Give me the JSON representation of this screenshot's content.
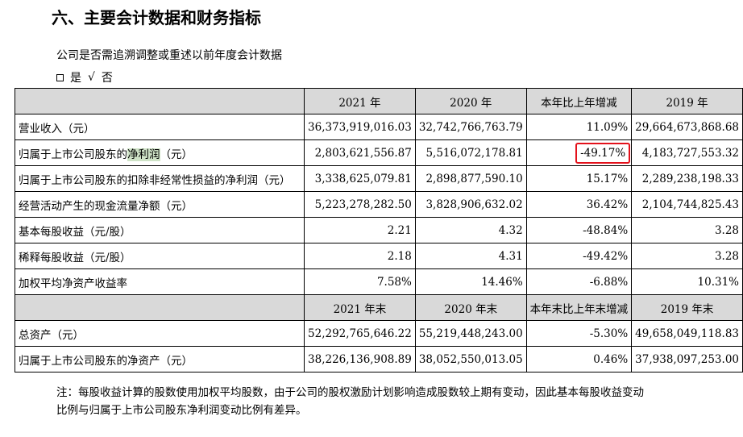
{
  "section_title": "六、主要会计数据和财务指标",
  "question": "公司是否需追溯调整或重述以前年度会计数据",
  "options": {
    "yes_label": "是",
    "no_mark": "√",
    "no_label": "否"
  },
  "table": {
    "header1": [
      "2021 年",
      "2020 年",
      "本年比上年增减",
      "2019 年"
    ],
    "rows1": [
      {
        "label_pre": "营业收入（元）",
        "label_hl": "",
        "label_post": "",
        "values": [
          "36,373,919,016.03",
          "32,742,766,763.79",
          "11.09%",
          "29,664,673,868.68"
        ]
      },
      {
        "label_pre": "归属于上市公司股东的",
        "label_hl": "净利润",
        "label_post": "（元）",
        "values": [
          "2,803,621,556.87",
          "5,516,072,178.81",
          "-49.17%",
          "4,183,727,553.32"
        ]
      },
      {
        "label_pre": "归属于上市公司股东的扣除非经常性损益的净利润（元）",
        "label_hl": "",
        "label_post": "",
        "values": [
          "3,338,625,079.81",
          "2,898,877,590.10",
          "15.17%",
          "2,289,238,198.33"
        ]
      },
      {
        "label_pre": "经营活动产生的现金流量净额（元）",
        "label_hl": "",
        "label_post": "",
        "values": [
          "5,223,278,282.50",
          "3,828,906,632.02",
          "36.42%",
          "2,104,744,825.43"
        ]
      },
      {
        "label_pre": "基本每股收益（元/股）",
        "label_hl": "",
        "label_post": "",
        "values": [
          "2.21",
          "4.32",
          "-48.84%",
          "3.28"
        ]
      },
      {
        "label_pre": "稀释每股收益（元/股）",
        "label_hl": "",
        "label_post": "",
        "values": [
          "2.18",
          "4.31",
          "-49.42%",
          "3.28"
        ]
      },
      {
        "label_pre": "加权平均净资产收益率",
        "label_hl": "",
        "label_post": "",
        "values": [
          "7.58%",
          "14.46%",
          "-6.88%",
          "10.31%"
        ]
      }
    ],
    "header2": [
      "2021 年末",
      "2020 年末",
      "本年末比上年末增减",
      "2019 年末"
    ],
    "rows2": [
      {
        "label": "总资产（元）",
        "values": [
          "52,292,765,646.22",
          "55,219,448,243.00",
          "-5.30%",
          "49,658,049,118.83"
        ]
      },
      {
        "label": "归属于上市公司股东的净资产（元）",
        "values": [
          "38,226,136,908.89",
          "38,052,550,013.05",
          "0.46%",
          "37,938,097,253.00"
        ]
      }
    ]
  },
  "note": {
    "line1": "注：每股收益计算的股数使用加权平均股数，由于公司的股权激励计划影响造成股数较上期有变动，因此基本每股收益变动",
    "line2": "比例与归属于上市公司股东净利润变动比例有差异。"
  },
  "colors": {
    "header_bg": "#d9d9d9",
    "highlight_bg": "#cfe3c7",
    "circle": "#e3111b"
  }
}
